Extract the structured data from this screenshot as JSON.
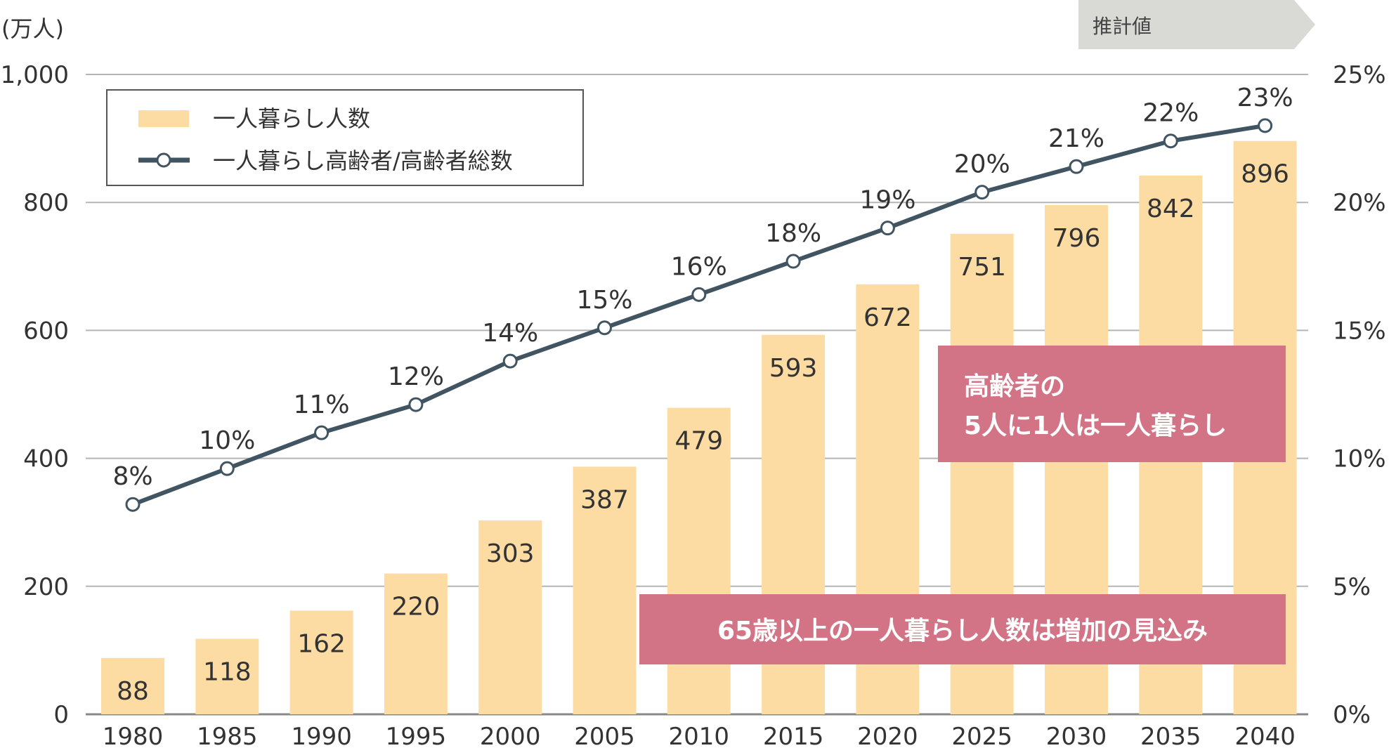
{
  "chart_data": {
    "type": "bar",
    "y_unit_label": "(万人)",
    "projection_label": "推計値",
    "categories": [
      "1980",
      "1985",
      "1990",
      "1995",
      "2000",
      "2005",
      "2010",
      "2015",
      "2020",
      "2025",
      "2030",
      "2035",
      "2040"
    ],
    "series": [
      {
        "name": "一人暮らし人数",
        "type": "bar",
        "axis": "left",
        "values": [
          88,
          118,
          162,
          220,
          303,
          387,
          479,
          593,
          672,
          751,
          796,
          842,
          896
        ]
      },
      {
        "name": "一人暮らし高齢者/高齢者総数",
        "type": "line",
        "axis": "right",
        "values": [
          8.2,
          9.6,
          11.0,
          12.1,
          13.8,
          15.1,
          16.4,
          17.7,
          19.0,
          20.4,
          21.4,
          22.4,
          23.0
        ],
        "labels": [
          "8%",
          "10%",
          "11%",
          "12%",
          "14%",
          "15%",
          "16%",
          "18%",
          "19%",
          "20%",
          "21%",
          "22%",
          "23%"
        ]
      }
    ],
    "y_left": {
      "min": 0,
      "max": 1000,
      "ticks": [
        0,
        200,
        400,
        600,
        800,
        1000
      ],
      "tick_labels": [
        "0",
        "200",
        "400",
        "600",
        "800",
        "1,000"
      ]
    },
    "y_right": {
      "min": 0,
      "max": 25,
      "ticks": [
        0,
        5,
        10,
        15,
        20,
        25
      ],
      "tick_labels": [
        "0%",
        "5%",
        "10%",
        "15%",
        "20%",
        "25%"
      ]
    },
    "grid": true,
    "legend_position": "top-left",
    "annotations": [
      {
        "text": "高齢者の\n5人に1人は一人暮らし"
      },
      {
        "text": "65歳以上の一人暮らし人数は増加の見込み"
      }
    ],
    "colors": {
      "bar": "#FDDCA4",
      "line": "#415461",
      "marker_fill": "#ffffff",
      "annotation_bg": "#D27486",
      "annotation_text": "#ffffff",
      "projection_bg": "#D9D9D5",
      "grid": "#B5B5B5",
      "text": "#333333"
    }
  }
}
